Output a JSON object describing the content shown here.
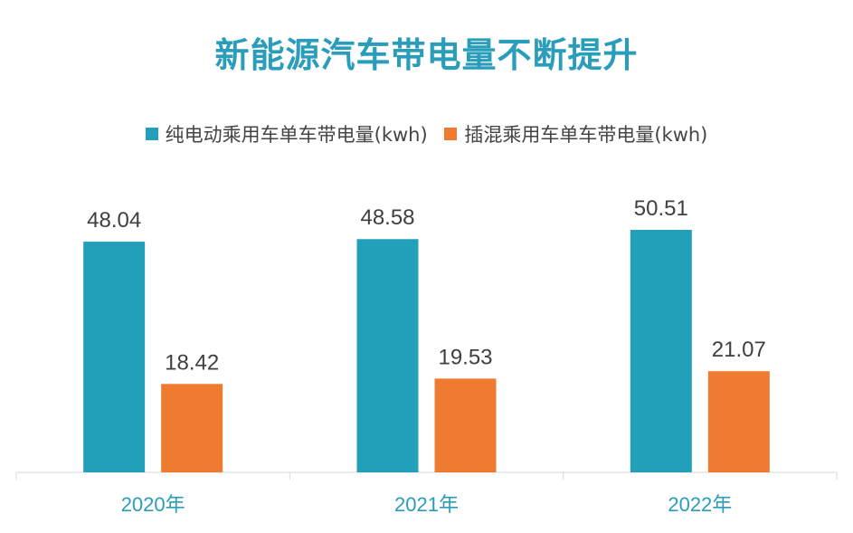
{
  "chart_data": {
    "type": "bar",
    "title": "新能源汽车带电量不断提升",
    "categories": [
      "2020年",
      "2021年",
      "2022年"
    ],
    "series": [
      {
        "name": "纯电动乘用车单车带电量(kwh)",
        "values": [
          48.04,
          48.58,
          50.51
        ],
        "color": "#219fbb"
      },
      {
        "name": "插混乘用车单车带电量(kwh)",
        "values": [
          18.42,
          19.53,
          21.07
        ],
        "color": "#ee7b2f"
      }
    ],
    "ylim": [
      0,
      50.51
    ],
    "grid": false,
    "legend_position": "top"
  }
}
